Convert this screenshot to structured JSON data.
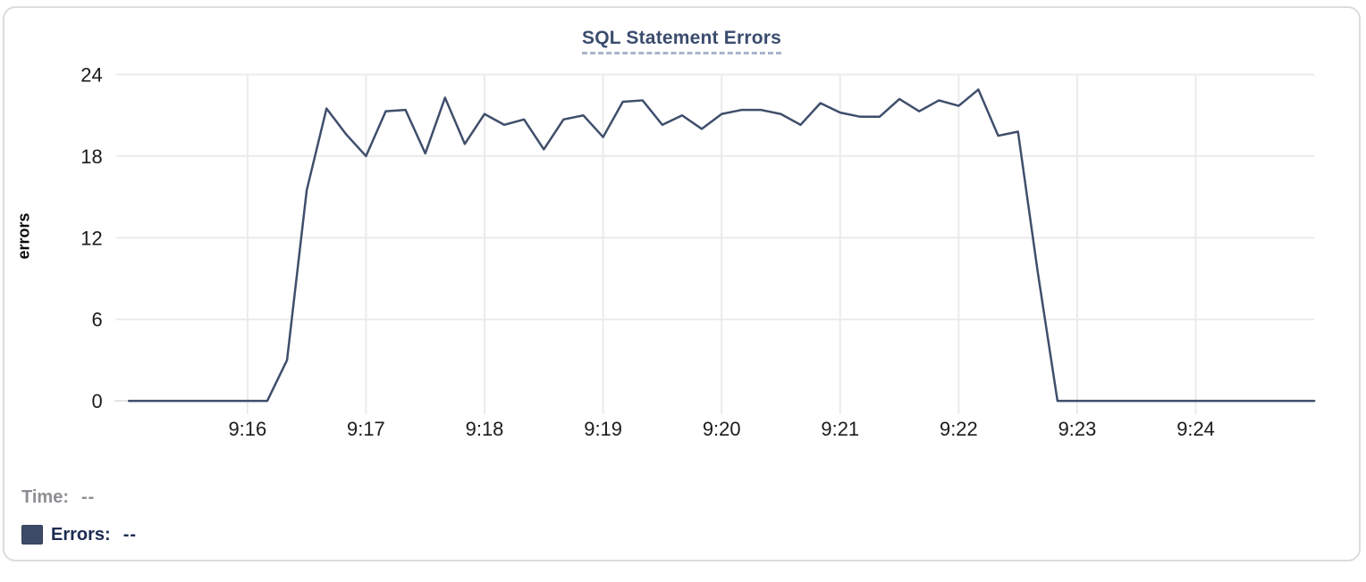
{
  "card": {
    "title": "SQL Statement Errors"
  },
  "legend": {
    "time_label": "Time:",
    "time_value": "--",
    "errors_label": "Errors:",
    "errors_value": "--"
  },
  "colors": {
    "line": "#3f4e6b",
    "title": "#3b4c6e",
    "title_underline": "#a9b4c9",
    "gridline": "#ebebec",
    "tick_text": "#1b1b1b",
    "legend_time_gray": "#8e8e93",
    "legend_errors_navy": "#1d2b50",
    "swatch": "#3d4b66",
    "card_border": "#dcdcde"
  },
  "chart_data": {
    "type": "line",
    "title": "SQL Statement Errors",
    "xlabel": "",
    "ylabel": "errors",
    "ylim": [
      0,
      24
    ],
    "y_ticks": [
      0,
      6,
      12,
      18,
      24
    ],
    "x_tick_labels": [
      "9:16",
      "9:17",
      "9:18",
      "9:19",
      "9:20",
      "9:21",
      "9:22",
      "9:23",
      "9:24"
    ],
    "x_start": "9:15:00",
    "x_end": "9:25:00",
    "interval_seconds": 10,
    "grid": true,
    "legend_position": "bottom-left",
    "series": [
      {
        "name": "Errors",
        "color": "#3f4e6b",
        "values": [
          0,
          0,
          0,
          0,
          0,
          0,
          0,
          0,
          3,
          15.5,
          21.5,
          19.6,
          18,
          21.3,
          21.4,
          18.2,
          22.3,
          18.9,
          21.1,
          20.3,
          20.7,
          18.5,
          20.7,
          21,
          19.4,
          22,
          22.1,
          20.3,
          21,
          20,
          21.1,
          21.4,
          21.4,
          21.1,
          20.3,
          21.9,
          21.2,
          20.9,
          20.9,
          22.2,
          21.3,
          22.1,
          21.7,
          22.9,
          19.5,
          19.8,
          9.5,
          0,
          0,
          0,
          0,
          0,
          0,
          0,
          0,
          0,
          0,
          0,
          0,
          0,
          0
        ]
      }
    ]
  }
}
